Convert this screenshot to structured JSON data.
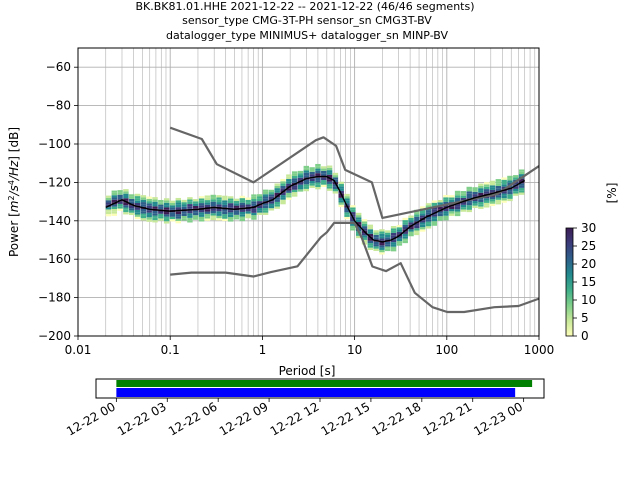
{
  "title": {
    "line1": "BK.BK81.01.HHE   2021-12-22 -- 2021-12-22  (46/46 segments)",
    "line2": "sensor_type CMG-3T-PH sensor_sn CMG3T-BV",
    "line3": "datalogger_type MINIMUS+ datalogger_sn MINP-BV"
  },
  "colors": {
    "model_line": "#666666",
    "mean_line": "#000000",
    "grid": "#b0b0b0",
    "data_bar": "#008000",
    "gaps_bar": "#0000ff",
    "colormap": [
      "#fdfeb8",
      "#c8e89a",
      "#7fcf8a",
      "#3fae8a",
      "#23898e",
      "#2e5f8a",
      "#3b3c7a",
      "#3d1d54"
    ]
  },
  "chart_data": [
    {
      "type": "heatmap",
      "title": "",
      "xlabel": "Period [s]",
      "ylabel": "Power [m^2/s^4/Hz] [dB]",
      "ylabel_parts": {
        "pre": "Power [",
        "m": "m",
        "sup1": "2",
        "s": "/s",
        "sup2": "4",
        "hz": "/Hz",
        "post": "] [dB]"
      },
      "xscale": "log",
      "xlim": [
        0.01,
        1000
      ],
      "ylim": [
        -200,
        -50
      ],
      "grid": true,
      "x_ticks": [
        0.01,
        0.1,
        1,
        10,
        100,
        1000
      ],
      "x_tick_labels": [
        "0.01",
        "0.1",
        "1",
        "10",
        "100",
        "1000"
      ],
      "y_ticks": [
        -200,
        -180,
        -160,
        -140,
        -120,
        -100,
        -80,
        -60
      ],
      "y_tick_labels": [
        "−200",
        "−180",
        "−160",
        "−140",
        "−120",
        "−100",
        "−80",
        "−60"
      ],
      "colorbar": {
        "label": "[%]",
        "range": [
          0,
          30
        ],
        "ticks": [
          0,
          5,
          10,
          15,
          20,
          25,
          30
        ]
      },
      "nhnm": {
        "period": [
          0.1,
          0.17,
          0.4,
          0.8,
          1.24,
          2.4,
          4.3,
          5.0,
          6.0,
          10.0,
          12.0,
          15.6,
          21.9,
          31.6,
          45.0,
          70.0,
          101.0,
          154.0,
          328.0,
          600.0,
          1000.0
        ],
        "power": [
          -168.0,
          -167.0,
          -167.0,
          -169.0,
          -166.7,
          -163.7,
          -148.6,
          -146.0,
          -141.1,
          -141.1,
          -149.0,
          -163.8,
          -166.2,
          -162.1,
          -177.5,
          -185.0,
          -187.5,
          -187.5,
          -185.0,
          -184.4,
          -180.5
        ]
      },
      "nlnm": {
        "period": [
          0.1,
          0.22,
          0.32,
          0.8,
          3.8,
          4.6,
          6.3,
          7.9,
          15.4,
          20.0,
          354.8,
          1000.0
        ],
        "power": [
          -91.5,
          -97.4,
          -110.5,
          -120.0,
          -98.0,
          -96.5,
          -101.0,
          -113.5,
          -120.0,
          -138.5,
          -126.0,
          -111.5
        ]
      },
      "mean_psd": {
        "period": [
          0.02,
          0.03,
          0.04,
          0.06,
          0.1,
          0.2,
          0.3,
          0.5,
          0.8,
          1.0,
          1.3,
          2.0,
          3.0,
          4.0,
          5.0,
          6.0,
          7.0,
          8.0,
          10.0,
          13.0,
          16.0,
          20.0,
          25.0,
          30.0,
          40.0,
          60.0,
          100.0,
          150.0,
          200.0,
          300.0,
          500.0,
          700.0
        ],
        "power": [
          -133,
          -129,
          -132,
          -134,
          -135,
          -134,
          -133,
          -134,
          -133,
          -131,
          -129,
          -122,
          -118,
          -117,
          -117,
          -119,
          -125,
          -131,
          -140,
          -146,
          -150,
          -151,
          -150,
          -148,
          -143,
          -138,
          -133,
          -130,
          -128,
          -126,
          -123,
          -119
        ]
      }
    },
    {
      "type": "timeline",
      "x_tick_labels": [
        "12-22 00",
        "12-22 03",
        "12-22 06",
        "12-22 09",
        "12-22 12",
        "12-22 15",
        "12-22 18",
        "12-22 21",
        "12-23 00"
      ],
      "x_ticks_hours": [
        0,
        3,
        6,
        9,
        12,
        15,
        18,
        21,
        24
      ],
      "xlim_hours": [
        -1.2,
        25.2
      ],
      "data_coverage_hours": [
        0,
        24.5
      ],
      "psd_coverage_hours": [
        0,
        23.5
      ]
    }
  ]
}
